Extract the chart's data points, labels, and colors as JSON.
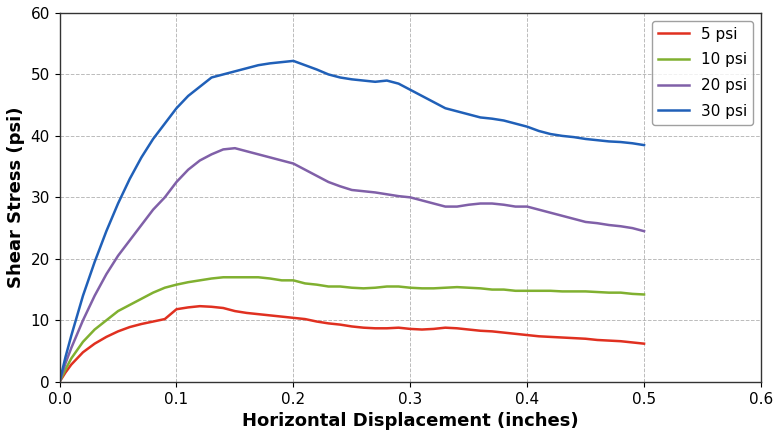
{
  "title": "",
  "xlabel": "Horizontal Displacement (inches)",
  "ylabel": "Shear Stress (psi)",
  "xlim": [
    0,
    0.6
  ],
  "ylim": [
    0,
    60
  ],
  "xticks": [
    0,
    0.1,
    0.2,
    0.3,
    0.4,
    0.5,
    0.6
  ],
  "yticks": [
    0,
    10,
    20,
    30,
    40,
    50,
    60
  ],
  "background_color": "#ffffff",
  "grid_color": "#aaaaaa",
  "series": [
    {
      "label": "5 psi",
      "color": "#e03020",
      "x": [
        0,
        0.005,
        0.01,
        0.02,
        0.03,
        0.04,
        0.05,
        0.06,
        0.07,
        0.08,
        0.09,
        0.1,
        0.11,
        0.12,
        0.13,
        0.14,
        0.15,
        0.16,
        0.17,
        0.18,
        0.19,
        0.2,
        0.21,
        0.22,
        0.23,
        0.24,
        0.25,
        0.26,
        0.27,
        0.28,
        0.29,
        0.3,
        0.31,
        0.32,
        0.33,
        0.34,
        0.35,
        0.36,
        0.37,
        0.38,
        0.39,
        0.4,
        0.41,
        0.42,
        0.43,
        0.44,
        0.45,
        0.46,
        0.47,
        0.48,
        0.49,
        0.5
      ],
      "y": [
        0,
        1.5,
        2.8,
        4.8,
        6.2,
        7.3,
        8.2,
        8.9,
        9.4,
        9.8,
        10.2,
        11.8,
        12.1,
        12.3,
        12.2,
        12.0,
        11.5,
        11.2,
        11.0,
        10.8,
        10.6,
        10.4,
        10.2,
        9.8,
        9.5,
        9.3,
        9.0,
        8.8,
        8.7,
        8.7,
        8.8,
        8.6,
        8.5,
        8.6,
        8.8,
        8.7,
        8.5,
        8.3,
        8.2,
        8.0,
        7.8,
        7.6,
        7.4,
        7.3,
        7.2,
        7.1,
        7.0,
        6.8,
        6.7,
        6.6,
        6.4,
        6.2
      ]
    },
    {
      "label": "10 psi",
      "color": "#80b030",
      "x": [
        0,
        0.005,
        0.01,
        0.02,
        0.03,
        0.04,
        0.05,
        0.06,
        0.07,
        0.08,
        0.09,
        0.1,
        0.11,
        0.12,
        0.13,
        0.14,
        0.15,
        0.16,
        0.17,
        0.18,
        0.19,
        0.2,
        0.21,
        0.22,
        0.23,
        0.24,
        0.25,
        0.26,
        0.27,
        0.28,
        0.29,
        0.3,
        0.31,
        0.32,
        0.33,
        0.34,
        0.35,
        0.36,
        0.37,
        0.38,
        0.39,
        0.4,
        0.41,
        0.42,
        0.43,
        0.44,
        0.45,
        0.46,
        0.47,
        0.48,
        0.49,
        0.5
      ],
      "y": [
        0,
        2.0,
        3.8,
        6.5,
        8.5,
        10.0,
        11.5,
        12.5,
        13.5,
        14.5,
        15.3,
        15.8,
        16.2,
        16.5,
        16.8,
        17.0,
        17.0,
        17.0,
        17.0,
        16.8,
        16.5,
        16.5,
        16.0,
        15.8,
        15.5,
        15.5,
        15.3,
        15.2,
        15.3,
        15.5,
        15.5,
        15.3,
        15.2,
        15.2,
        15.3,
        15.4,
        15.3,
        15.2,
        15.0,
        15.0,
        14.8,
        14.8,
        14.8,
        14.8,
        14.7,
        14.7,
        14.7,
        14.6,
        14.5,
        14.5,
        14.3,
        14.2
      ]
    },
    {
      "label": "20 psi",
      "color": "#8060a8",
      "x": [
        0,
        0.005,
        0.01,
        0.02,
        0.03,
        0.04,
        0.05,
        0.06,
        0.07,
        0.08,
        0.09,
        0.1,
        0.11,
        0.12,
        0.13,
        0.14,
        0.15,
        0.16,
        0.17,
        0.18,
        0.19,
        0.2,
        0.21,
        0.22,
        0.23,
        0.24,
        0.25,
        0.26,
        0.27,
        0.28,
        0.29,
        0.3,
        0.31,
        0.32,
        0.33,
        0.34,
        0.35,
        0.36,
        0.37,
        0.38,
        0.39,
        0.4,
        0.41,
        0.42,
        0.43,
        0.44,
        0.45,
        0.46,
        0.47,
        0.48,
        0.49,
        0.5
      ],
      "y": [
        0,
        3.0,
        5.5,
        10.0,
        14.0,
        17.5,
        20.5,
        23.0,
        25.5,
        28.0,
        30.0,
        32.5,
        34.5,
        36.0,
        37.0,
        37.8,
        38.0,
        37.5,
        37.0,
        36.5,
        36.0,
        35.5,
        34.5,
        33.5,
        32.5,
        31.8,
        31.2,
        31.0,
        30.8,
        30.5,
        30.2,
        30.0,
        29.5,
        29.0,
        28.5,
        28.5,
        28.8,
        29.0,
        29.0,
        28.8,
        28.5,
        28.5,
        28.0,
        27.5,
        27.0,
        26.5,
        26.0,
        25.8,
        25.5,
        25.3,
        25.0,
        24.5
      ]
    },
    {
      "label": "30 psi",
      "color": "#2060b8",
      "x": [
        0,
        0.005,
        0.01,
        0.02,
        0.03,
        0.04,
        0.05,
        0.06,
        0.07,
        0.08,
        0.09,
        0.1,
        0.11,
        0.12,
        0.13,
        0.14,
        0.15,
        0.16,
        0.17,
        0.18,
        0.19,
        0.2,
        0.21,
        0.22,
        0.23,
        0.24,
        0.25,
        0.26,
        0.27,
        0.28,
        0.29,
        0.3,
        0.31,
        0.32,
        0.33,
        0.34,
        0.35,
        0.36,
        0.37,
        0.38,
        0.39,
        0.4,
        0.41,
        0.42,
        0.43,
        0.44,
        0.45,
        0.46,
        0.47,
        0.48,
        0.49,
        0.5
      ],
      "y": [
        0,
        4.0,
        7.5,
        14.0,
        19.5,
        24.5,
        29.0,
        33.0,
        36.5,
        39.5,
        42.0,
        44.5,
        46.5,
        48.0,
        49.5,
        50.0,
        50.5,
        51.0,
        51.5,
        51.8,
        52.0,
        52.2,
        51.5,
        50.8,
        50.0,
        49.5,
        49.2,
        49.0,
        48.8,
        49.0,
        48.5,
        47.5,
        46.5,
        45.5,
        44.5,
        44.0,
        43.5,
        43.0,
        42.8,
        42.5,
        42.0,
        41.5,
        40.8,
        40.3,
        40.0,
        39.8,
        39.5,
        39.3,
        39.1,
        39.0,
        38.8,
        38.5
      ]
    }
  ],
  "legend": {
    "loc": "upper right",
    "fontsize": 11,
    "frameon": true,
    "edgecolor": "#888888"
  },
  "line_width": 1.8,
  "xlabel_fontsize": 13,
  "ylabel_fontsize": 13,
  "tick_fontsize": 11,
  "legend_fontsize": 11
}
